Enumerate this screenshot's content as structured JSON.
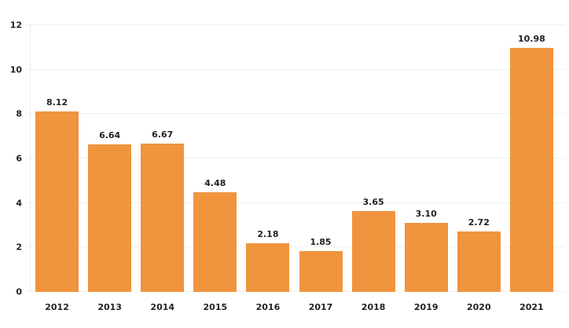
{
  "chart_data": {
    "type": "bar",
    "title": "",
    "xlabel": "",
    "ylabel": "",
    "categories": [
      "2012",
      "2013",
      "2014",
      "2015",
      "2016",
      "2017",
      "2018",
      "2019",
      "2020",
      "2021"
    ],
    "values": [
      8.12,
      6.64,
      6.67,
      4.48,
      2.18,
      1.85,
      3.65,
      3.1,
      2.72,
      10.98
    ],
    "value_labels": [
      "8.12",
      "6.64",
      "6.67",
      "4.48",
      "2.18",
      "1.85",
      "3.65",
      "3.10",
      "2.72",
      "10.98"
    ],
    "ylim": [
      0,
      12
    ],
    "yticks": [
      0,
      2,
      4,
      6,
      8,
      10,
      12
    ],
    "grid": "horizontal",
    "legend": "none",
    "colors": {
      "bar": "#F0943E",
      "label": "#222222",
      "gridline": "#f0f0f0",
      "axis_line": "#ececec",
      "background": "#ffffff"
    }
  }
}
